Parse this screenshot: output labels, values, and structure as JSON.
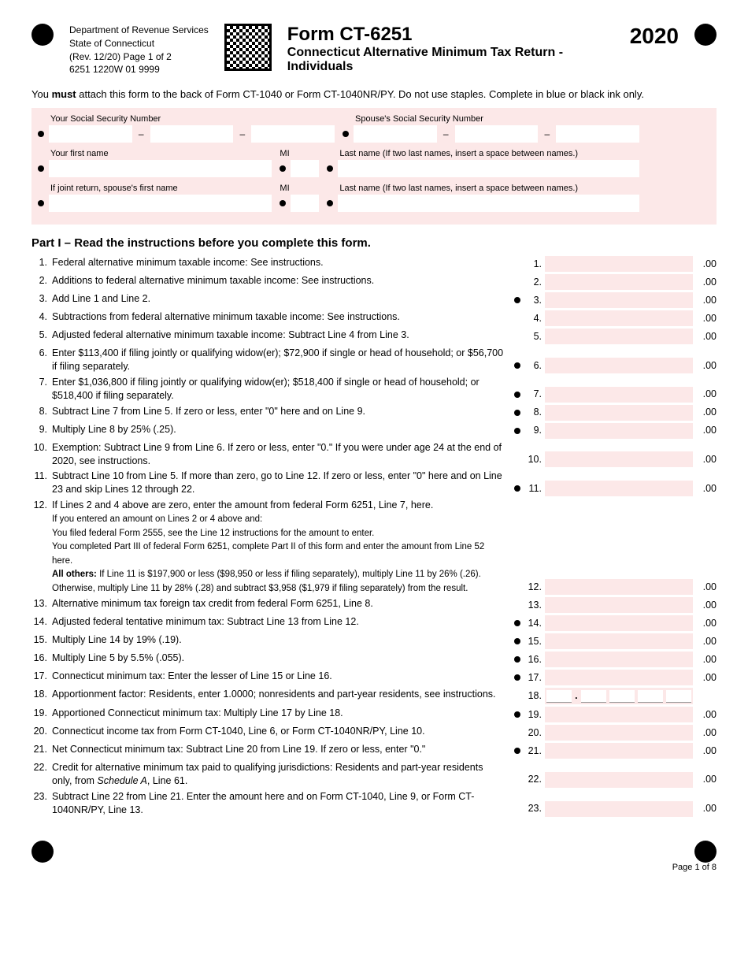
{
  "header": {
    "dept_line1": "Department of Revenue Services",
    "dept_line2": "State of Connecticut",
    "rev": "(Rev. 12/20) Page 1 of 2",
    "code": "6251 1220W 01 9999",
    "form_code": "Form CT-6251",
    "form_title": "Connecticut Alternative Minimum Tax Return - Individuals",
    "year": "2020"
  },
  "instruction": "You must attach this form to the back of Form CT-1040 or Form CT-1040NR/PY. Do not use staples. Complete in blue or black ink only.",
  "id_section": {
    "your_ssn_label": "Your Social Security Number",
    "spouse_ssn_label": "Spouse's Social Security Number",
    "first_name_label": "Your first name",
    "mi_label": "MI",
    "last_name_label": "Last name (If two last names, insert a space between names.)",
    "spouse_first_label": "If joint return, spouse's first name"
  },
  "part1_heading": "Part I – Read the instructions before you complete this form.",
  "lines": [
    {
      "n": "1.",
      "t": "Federal alternative minimum taxable income: See instructions.",
      "rn": "1.",
      "b": false
    },
    {
      "n": "2.",
      "t": "Additions to federal alternative minimum taxable income: See instructions.",
      "rn": "2.",
      "b": false
    },
    {
      "n": "3.",
      "t": "Add Line 1 and Line 2.",
      "rn": "3.",
      "b": true
    },
    {
      "n": "4.",
      "t": "Subtractions from federal alternative minimum taxable income: See instructions.",
      "rn": "4.",
      "b": false
    },
    {
      "n": "5.",
      "t": "Adjusted federal alternative minimum taxable income: Subtract Line 4 from Line 3.",
      "rn": "5.",
      "b": false
    },
    {
      "n": "6.",
      "t": "Enter $113,400 if filing jointly or qualifying widow(er); $72,900 if single or head of household; or $56,700 if filing separately.",
      "rn": "6.",
      "b": true
    },
    {
      "n": "7.",
      "t": "Enter $1,036,800 if filing jointly or qualifying widow(er); $518,400 if single or head of household; or $518,400 if filing separately.",
      "rn": "7.",
      "b": true
    },
    {
      "n": "8.",
      "t": "Subtract Line 7 from Line 5. If zero or less, enter \"0\" here and on Line 9.",
      "rn": "8.",
      "b": true
    },
    {
      "n": "9.",
      "t": "Multiply Line 8 by 25% (.25).",
      "rn": "9.",
      "b": true
    },
    {
      "n": "10.",
      "t": "Exemption: Subtract Line 9 from Line 6. If zero or less, enter \"0.\" If you were under age 24 at the end of 2020, see instructions.",
      "rn": "10.",
      "b": false
    },
    {
      "n": "11.",
      "t": "Subtract Line 10 from Line 5. If more than zero, go to Line 12. If zero or less, enter \"0\" here and on Line 23 and skip Lines 12 through 22.",
      "rn": "11.",
      "b": true
    }
  ],
  "line12": {
    "n": "12.",
    "main": "If Lines 2 and 4 above are zero, enter the amount from federal Form 6251, Line 7, here.",
    "s1": "If you entered an amount on Lines 2 or 4 above and:",
    "s2": "You filed federal Form 2555, see the Line 12 instructions for the amount to enter.",
    "s3": "You completed Part III of federal Form 6251, complete Part II of this form and enter the amount from Line 52 here.",
    "s4": "All others: If Line 11 is $197,900 or less ($98,950 or less if filing separately), multiply Line 11 by 26% (.26). Otherwise, multiply Line 11 by 28% (.28) and subtract $3,958 ($1,979 if filing separately) from the result.",
    "rn": "12."
  },
  "lines2": [
    {
      "n": "13.",
      "t": "Alternative minimum tax foreign tax credit from federal Form 6251, Line 8.",
      "rn": "13.",
      "b": false
    },
    {
      "n": "14.",
      "t": "Adjusted federal tentative minimum tax: Subtract Line 13 from Line 12.",
      "rn": "14.",
      "b": true
    },
    {
      "n": "15.",
      "t": "Multiply Line 14 by 19% (.19).",
      "rn": "15.",
      "b": true
    },
    {
      "n": "16.",
      "t": "Multiply Line 5 by 5.5% (.055).",
      "rn": "16.",
      "b": true
    },
    {
      "n": "17.",
      "t": "Connecticut minimum tax: Enter the lesser of Line 15 or Line 16.",
      "rn": "17.",
      "b": true
    }
  ],
  "line18": {
    "n": "18.",
    "t": "Apportionment factor: Residents, enter 1.0000; nonresidents and part-year residents, see instructions.",
    "rn": "18."
  },
  "lines3": [
    {
      "n": "19.",
      "t": "Apportioned Connecticut minimum tax: Multiply Line 17 by Line 18.",
      "rn": "19.",
      "b": true
    },
    {
      "n": "20.",
      "t": "Connecticut income tax from Form CT-1040, Line 6, or Form CT-1040NR/PY, Line 10.",
      "rn": "20.",
      "b": false
    },
    {
      "n": "21.",
      "t": "Net Connecticut minimum tax: Subtract Line 20 from Line 19. If zero or less, enter \"0.\"",
      "rn": "21.",
      "b": true
    },
    {
      "n": "22.",
      "t": "Credit for alternative minimum tax paid to qualifying jurisdictions: Residents and part-year residents only, from Schedule A, Line 61.",
      "rn": "22.",
      "b": false,
      "italic": "Schedule A"
    },
    {
      "n": "23.",
      "t": "Subtract Line 22 from Line 21. Enter the amount here and on Form CT-1040, Line 9, or Form CT-1040NR/PY, Line 13.",
      "rn": "23.",
      "b": false
    }
  ],
  "cents": ".00",
  "footer_page": "Page 1 of 8",
  "colors": {
    "pink": "#fce8e8",
    "black": "#000000",
    "white": "#ffffff"
  }
}
